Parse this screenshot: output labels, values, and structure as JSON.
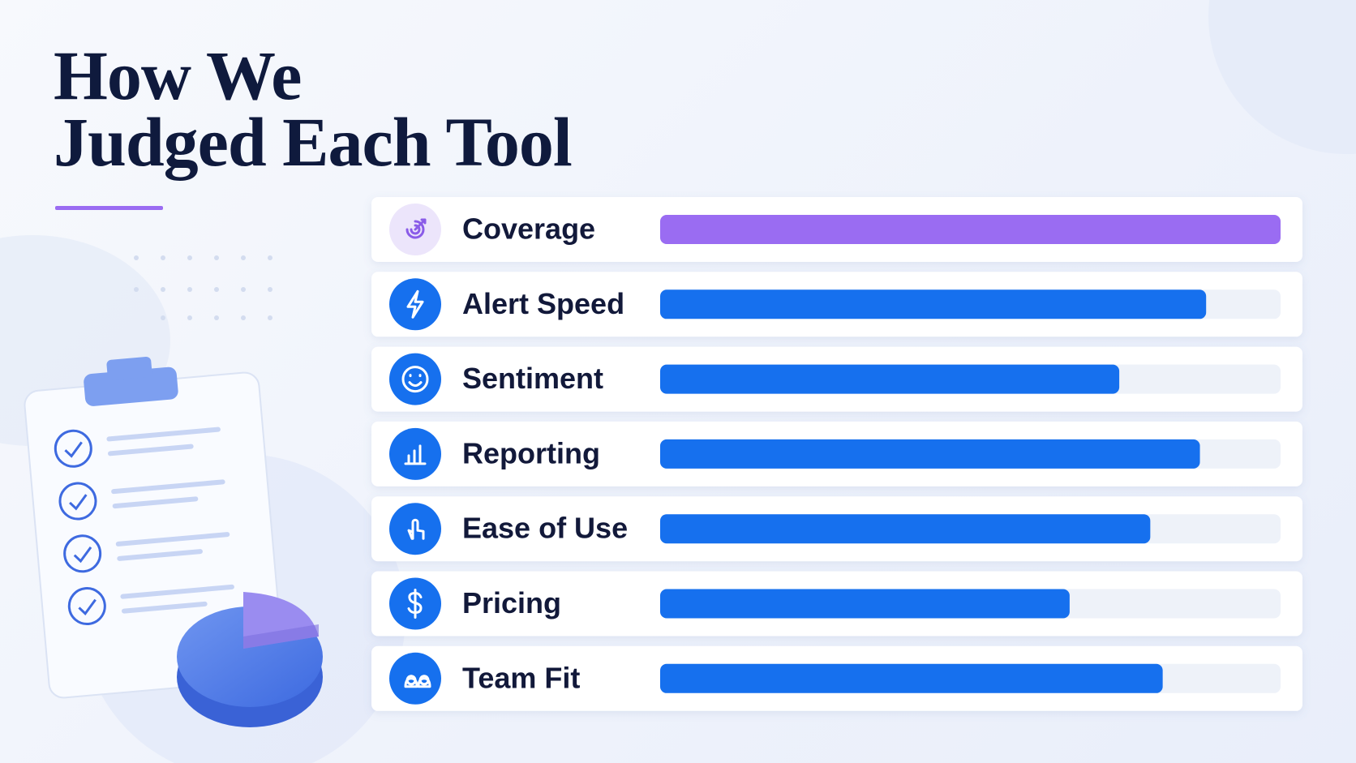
{
  "chart_data": {
    "type": "bar",
    "orientation": "horizontal",
    "title": "How We\nJudged Each Tool",
    "categories": [
      "Coverage",
      "Alert Speed",
      "Sentiment",
      "Reporting",
      "Ease of Use",
      "Pricing",
      "Team Fit"
    ],
    "values": [
      100,
      88,
      74,
      87,
      79,
      66,
      81
    ],
    "colors": [
      "#9a6cf2",
      "#1670ee",
      "#1670ee",
      "#1670ee",
      "#1670ee",
      "#1670ee",
      "#1670ee"
    ],
    "xlim": [
      0,
      100
    ]
  }
}
